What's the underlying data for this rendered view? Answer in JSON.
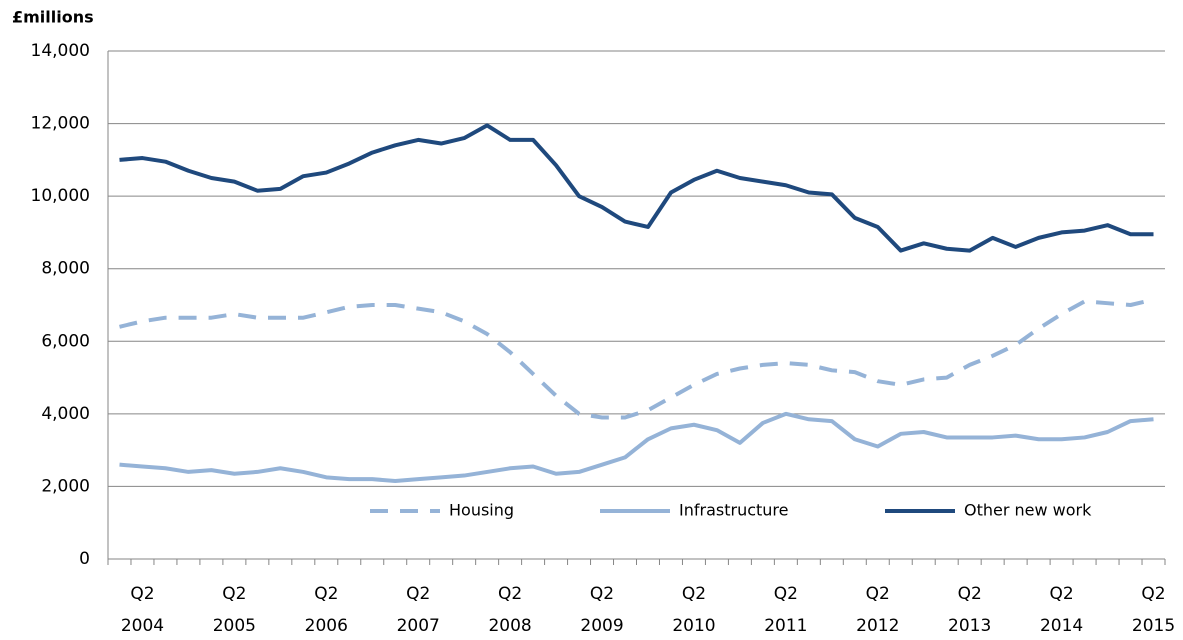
{
  "chart_data": {
    "type": "line",
    "y_axis_label": "£millions",
    "categories": [
      null,
      "Q2 2004",
      null,
      null,
      null,
      "Q2 2005",
      null,
      null,
      null,
      "Q2 2006",
      null,
      null,
      null,
      "Q2 2007",
      null,
      null,
      null,
      "Q2 2008",
      null,
      null,
      null,
      "Q2 2009",
      null,
      null,
      null,
      "Q2 2010",
      null,
      null,
      null,
      "Q2 2011",
      null,
      null,
      null,
      "Q2 2012",
      null,
      null,
      null,
      "Q2 2013",
      null,
      null,
      null,
      "Q2 2014",
      null,
      null,
      null,
      "Q2 2015"
    ],
    "series": [
      {
        "name": "Housing",
        "color": "#95b3d7",
        "dashed": true,
        "values": [
          6400,
          6550,
          6650,
          6650,
          6650,
          6750,
          6650,
          6650,
          6650,
          6800,
          6950,
          7000,
          7000,
          6900,
          6800,
          6550,
          6200,
          5700,
          5100,
          4500,
          4000,
          3900,
          3900,
          4100,
          4450,
          4800,
          5100,
          5250,
          5350,
          5400,
          5350,
          5200,
          5150,
          4900,
          4800,
          4950,
          5000,
          5350,
          5600,
          5900,
          6350,
          6750,
          7100,
          7050,
          7000,
          7150
        ]
      },
      {
        "name": "Infrastructure",
        "color": "#95b3d7",
        "dashed": false,
        "values": [
          2600,
          2550,
          2500,
          2400,
          2450,
          2350,
          2400,
          2500,
          2400,
          2250,
          2200,
          2200,
          2150,
          2200,
          2250,
          2300,
          2400,
          2500,
          2550,
          2350,
          2400,
          2600,
          2800,
          3300,
          3600,
          3700,
          3550,
          3200,
          3750,
          4000,
          3850,
          3800,
          3300,
          3100,
          3450,
          3500,
          3350,
          3350,
          3350,
          3400,
          3300,
          3300,
          3350,
          3500,
          3800,
          3850
        ]
      },
      {
        "name": "Other new work",
        "color": "#1f497d",
        "dashed": false,
        "values": [
          11000,
          11050,
          10950,
          10700,
          10500,
          10400,
          10150,
          10200,
          10550,
          10650,
          10900,
          11200,
          11400,
          11550,
          11450,
          11600,
          11950,
          11550,
          11550,
          10850,
          10000,
          9700,
          9300,
          9150,
          10100,
          10450,
          10700,
          10500,
          10400,
          10300,
          10100,
          10050,
          9400,
          9150,
          8500,
          8700,
          8550,
          8500,
          8850,
          8600,
          8850,
          9000,
          9050,
          9200,
          8950,
          8950
        ]
      }
    ],
    "ylim": [
      0,
      14000
    ],
    "yticks": [
      {
        "value": 0,
        "label": "0"
      },
      {
        "value": 2000,
        "label": "2,000"
      },
      {
        "value": 4000,
        "label": "4,000"
      },
      {
        "value": 6000,
        "label": "6,000"
      },
      {
        "value": 8000,
        "label": "8,000"
      },
      {
        "value": 10000,
        "label": "10,000"
      },
      {
        "value": 12000,
        "label": "12,000"
      },
      {
        "value": 14000,
        "label": "14,000"
      }
    ],
    "grid": true,
    "legend": "lower center"
  }
}
